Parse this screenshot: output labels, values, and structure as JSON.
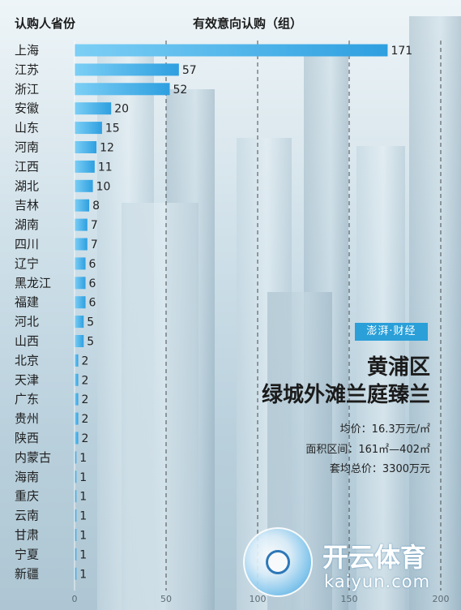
{
  "header": {
    "left_title": "认购人省份",
    "right_title": "有效意向认购（组）"
  },
  "brand": {
    "label": "澎湃·财经"
  },
  "project": {
    "district": "黄浦区",
    "name": "绿城外滩兰庭臻兰",
    "avg_price": "均价：16.3万元/㎡",
    "area_range": "面积区间：161㎡—402㎡",
    "total_price": "套均总价：3300万元"
  },
  "watermark": {
    "name_cn": "开云体育",
    "name_en": "kaiyun.com"
  },
  "colors": {
    "bar_start": "#7ccff5",
    "bar_end": "#2e9fe0",
    "gridline": "#3a3a3a",
    "brand_box": "#2a9fd8"
  },
  "chart_data": {
    "type": "bar",
    "orientation": "horizontal",
    "categories": [
      "上海",
      "江苏",
      "浙江",
      "安徽",
      "山东",
      "河南",
      "江西",
      "湖北",
      "吉林",
      "湖南",
      "四川",
      "辽宁",
      "黑龙江",
      "福建",
      "河北",
      "山西",
      "北京",
      "天津",
      "广东",
      "贵州",
      "陕西",
      "内蒙古",
      "海南",
      "重庆",
      "云南",
      "甘肃",
      "宁夏",
      "新疆"
    ],
    "values": [
      171,
      57,
      52,
      20,
      15,
      12,
      11,
      10,
      8,
      7,
      7,
      6,
      6,
      6,
      5,
      5,
      2,
      2,
      2,
      2,
      2,
      1,
      1,
      1,
      1,
      1,
      1,
      1
    ],
    "data_labels": [
      "171",
      "57",
      "52",
      "20",
      "15",
      "12",
      "11",
      "10",
      "8",
      "7",
      "7",
      "6",
      "6",
      "6",
      "5",
      "5",
      "2",
      "2",
      "2",
      "2",
      "2",
      "1",
      "1",
      "1",
      "1",
      "1",
      "1",
      "1"
    ],
    "x_ticks": [
      "0",
      "50",
      "100",
      "150",
      "200"
    ],
    "xlim": [
      0,
      200
    ],
    "grid": "dashed vertical",
    "xlabel": "",
    "ylabel": ""
  }
}
